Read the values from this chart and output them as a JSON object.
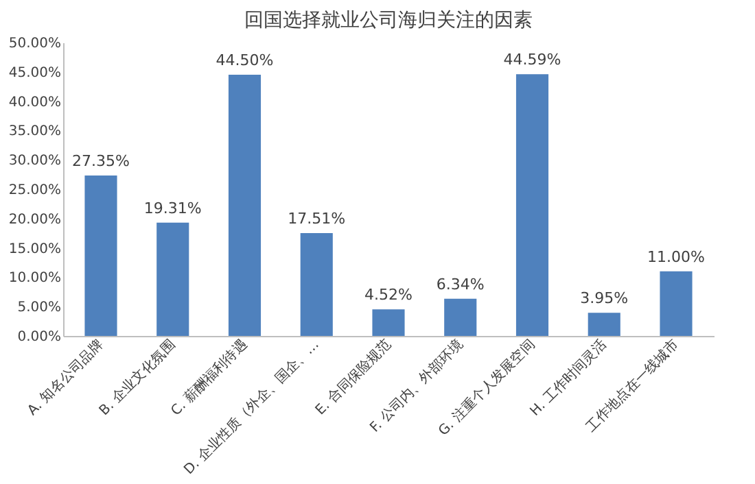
{
  "chart_data": {
    "type": "bar",
    "title": "回国选择就业公司海归关注的因素",
    "categories": [
      "A. 知名公司品牌",
      "B. 企业文化氛围",
      "C. 薪酬福利待遇",
      "D. 企业性质（外企、国企、…",
      "E. 合同保险规范",
      "F. 公司内、外部环境",
      "G. 注重个人发展空间",
      "H. 工作时间灵活",
      "工作地点在一线城市"
    ],
    "values": [
      27.35,
      19.31,
      44.5,
      17.51,
      4.52,
      6.34,
      44.59,
      3.95,
      11.0
    ],
    "value_labels": [
      "27.35%",
      "19.31%",
      "44.50%",
      "17.51%",
      "4.52%",
      "6.34%",
      "44.59%",
      "3.95%",
      "11.00%"
    ],
    "color": "#4f81bd",
    "ylim": [
      0,
      50
    ],
    "yticks": [
      {
        "value": 0,
        "label": "0.00%"
      },
      {
        "value": 5,
        "label": "5.00%"
      },
      {
        "value": 10,
        "label": "10.00%"
      },
      {
        "value": 15,
        "label": "15.00%"
      },
      {
        "value": 20,
        "label": "20.00%"
      },
      {
        "value": 25,
        "label": "25.00%"
      },
      {
        "value": 30,
        "label": "30.00%"
      },
      {
        "value": 35,
        "label": "35.00%"
      },
      {
        "value": 40,
        "label": "40.00%"
      },
      {
        "value": 45,
        "label": "45.00%"
      },
      {
        "value": 50,
        "label": "50.00%"
      }
    ],
    "grid": false
  }
}
